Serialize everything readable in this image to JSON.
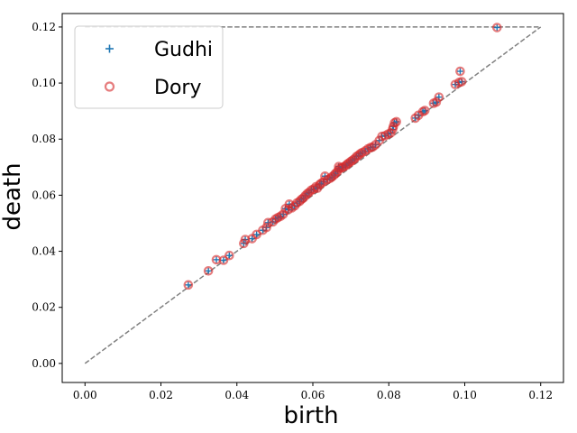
{
  "chart_data": {
    "type": "scatter",
    "xlabel": "birth",
    "ylabel": "death",
    "xlim": [
      -0.006,
      0.126
    ],
    "ylim": [
      -0.0068,
      0.1248
    ],
    "xticks": [
      "0.00",
      "0.02",
      "0.04",
      "0.06",
      "0.08",
      "0.10",
      "0.12"
    ],
    "yticks": [
      "0.00",
      "0.02",
      "0.04",
      "0.06",
      "0.08",
      "0.10",
      "0.12"
    ],
    "legend_position": "top-left",
    "reference_lines": [
      {
        "kind": "diagonal",
        "from": [
          0,
          0
        ],
        "to": [
          0.12,
          0.12
        ],
        "style": "dashed",
        "color": "#808080"
      },
      {
        "kind": "horizontal",
        "y": 0.12,
        "from_x": 0,
        "to_x": 0.12,
        "style": "dashed",
        "color": "#808080"
      }
    ],
    "series": [
      {
        "name": "Gudhi",
        "marker": "plus",
        "color": "#1f77b4"
      },
      {
        "name": "Dory",
        "marker": "open-circle",
        "color": "#d62728"
      }
    ],
    "points": [
      [
        0.0272,
        0.028
      ],
      [
        0.0325,
        0.033
      ],
      [
        0.0346,
        0.037
      ],
      [
        0.0365,
        0.0368
      ],
      [
        0.038,
        0.0385
      ],
      [
        0.0418,
        0.0428
      ],
      [
        0.0422,
        0.0442
      ],
      [
        0.044,
        0.0445
      ],
      [
        0.0452,
        0.046
      ],
      [
        0.0468,
        0.0475
      ],
      [
        0.0478,
        0.0485
      ],
      [
        0.0482,
        0.0502
      ],
      [
        0.0495,
        0.0505
      ],
      [
        0.0502,
        0.0515
      ],
      [
        0.0508,
        0.052
      ],
      [
        0.0515,
        0.0525
      ],
      [
        0.0522,
        0.0532
      ],
      [
        0.0528,
        0.0552
      ],
      [
        0.0535,
        0.0548
      ],
      [
        0.0538,
        0.0568
      ],
      [
        0.0545,
        0.0555
      ],
      [
        0.0552,
        0.0562
      ],
      [
        0.0558,
        0.0572
      ],
      [
        0.0565,
        0.0578
      ],
      [
        0.057,
        0.0585
      ],
      [
        0.0575,
        0.059
      ],
      [
        0.058,
        0.0598
      ],
      [
        0.0585,
        0.0605
      ],
      [
        0.059,
        0.061
      ],
      [
        0.0596,
        0.0618
      ],
      [
        0.0602,
        0.0622
      ],
      [
        0.0608,
        0.063
      ],
      [
        0.0612,
        0.0625
      ],
      [
        0.0618,
        0.0638
      ],
      [
        0.0622,
        0.0642
      ],
      [
        0.0628,
        0.0648
      ],
      [
        0.0632,
        0.0668
      ],
      [
        0.0638,
        0.0655
      ],
      [
        0.0645,
        0.066
      ],
      [
        0.065,
        0.0665
      ],
      [
        0.0656,
        0.0672
      ],
      [
        0.066,
        0.0678
      ],
      [
        0.0665,
        0.0685
      ],
      [
        0.0668,
        0.0702
      ],
      [
        0.067,
        0.0695
      ],
      [
        0.0676,
        0.0698
      ],
      [
        0.068,
        0.07
      ],
      [
        0.0686,
        0.0705
      ],
      [
        0.069,
        0.071
      ],
      [
        0.0695,
        0.0715
      ],
      [
        0.07,
        0.072
      ],
      [
        0.0705,
        0.0725
      ],
      [
        0.071,
        0.073
      ],
      [
        0.0715,
        0.0738
      ],
      [
        0.072,
        0.0742
      ],
      [
        0.0725,
        0.0748
      ],
      [
        0.073,
        0.0752
      ],
      [
        0.0738,
        0.0758
      ],
      [
        0.0745,
        0.0765
      ],
      [
        0.0752,
        0.077
      ],
      [
        0.0758,
        0.0772
      ],
      [
        0.0765,
        0.078
      ],
      [
        0.0775,
        0.0795
      ],
      [
        0.0782,
        0.081
      ],
      [
        0.079,
        0.0812
      ],
      [
        0.0798,
        0.0818
      ],
      [
        0.0805,
        0.0822
      ],
      [
        0.081,
        0.0835
      ],
      [
        0.0812,
        0.0845
      ],
      [
        0.0815,
        0.0858
      ],
      [
        0.082,
        0.0862
      ],
      [
        0.087,
        0.0875
      ],
      [
        0.0878,
        0.0885
      ],
      [
        0.089,
        0.0898
      ],
      [
        0.0895,
        0.0902
      ],
      [
        0.0918,
        0.0928
      ],
      [
        0.0925,
        0.0932
      ],
      [
        0.0932,
        0.095
      ],
      [
        0.0975,
        0.0995
      ],
      [
        0.0985,
        0.1002
      ],
      [
        0.0988,
        0.1042
      ],
      [
        0.0992,
        0.1005
      ],
      [
        0.1085,
        0.1198
      ]
    ]
  }
}
